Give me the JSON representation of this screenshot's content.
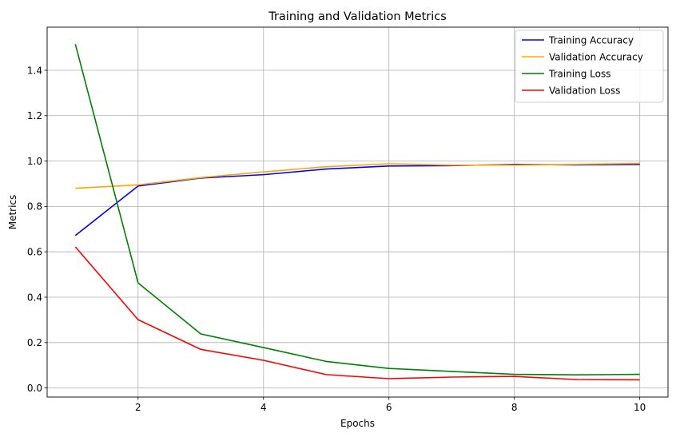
{
  "chart_data": {
    "type": "line",
    "title": "Training and Validation Metrics",
    "xlabel": "Epochs",
    "ylabel": "Metrics",
    "x": [
      1,
      2,
      3,
      4,
      5,
      6,
      7,
      8,
      9,
      10
    ],
    "xlim": [
      0.55,
      10.45
    ],
    "ylim": [
      -0.04,
      1.59
    ],
    "xticks": [
      2,
      4,
      6,
      8,
      10
    ],
    "yticks": [
      0.0,
      0.2,
      0.4,
      0.6,
      0.8,
      1.0,
      1.2,
      1.4
    ],
    "grid": true,
    "legend_position": "top-right",
    "series": [
      {
        "name": "Training Accuracy",
        "color": "#0000ff",
        "values": [
          0.672,
          0.89,
          0.925,
          0.94,
          0.965,
          0.978,
          0.98,
          0.985,
          0.983,
          0.985
        ]
      },
      {
        "name": "Validation Accuracy",
        "color": "#ffa500",
        "values": [
          0.88,
          0.895,
          0.927,
          0.952,
          0.975,
          0.988,
          0.982,
          0.982,
          0.985,
          0.99
        ]
      },
      {
        "name": "Training Loss",
        "color": "#008000",
        "values": [
          1.515,
          0.463,
          0.238,
          0.178,
          0.117,
          0.086,
          0.073,
          0.06,
          0.058,
          0.06
        ]
      },
      {
        "name": "Validation Loss",
        "color": "#ff0000",
        "values": [
          0.622,
          0.301,
          0.17,
          0.122,
          0.059,
          0.041,
          0.048,
          0.051,
          0.037,
          0.036
        ]
      }
    ]
  }
}
